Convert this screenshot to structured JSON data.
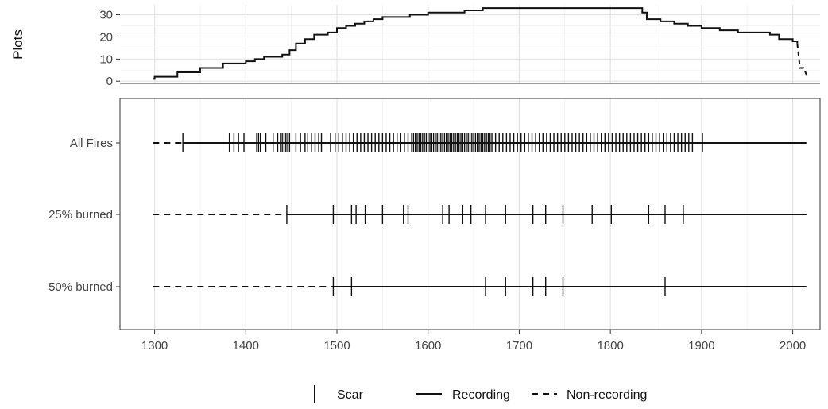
{
  "chart_data": [
    {
      "type": "line",
      "ylabel": "Plots",
      "xlim": [
        1262,
        2030
      ],
      "ylim": [
        -1,
        34.5
      ],
      "y_ticks": [
        0,
        10,
        20,
        30
      ],
      "grid": true,
      "series": [
        {
          "style": "recording",
          "x": [
            1298,
            1300,
            1325,
            1350,
            1375,
            1400,
            1410,
            1420,
            1440,
            1448,
            1455,
            1465,
            1475,
            1490,
            1500,
            1510,
            1520,
            1530,
            1540,
            1550,
            1560,
            1580,
            1600,
            1640,
            1660,
            1680,
            1800,
            1835,
            1840,
            1855,
            1870,
            1885,
            1900,
            1920,
            1940,
            1960,
            1975,
            1985,
            2000,
            2005
          ],
          "y": [
            1,
            2,
            4,
            6,
            8,
            9,
            10,
            11,
            12,
            14,
            17,
            19,
            21,
            22,
            24,
            25,
            26,
            27,
            28,
            29,
            29,
            30,
            31,
            32,
            33,
            33,
            33,
            31,
            28,
            27,
            26,
            25,
            24,
            23,
            22,
            22,
            21,
            19,
            18,
            17
          ]
        },
        {
          "style": "non-recording",
          "x": [
            2005,
            2008,
            2012,
            2016
          ],
          "y": [
            17,
            6,
            6,
            2
          ]
        }
      ]
    },
    {
      "type": "event",
      "xlim": [
        1262,
        2030
      ],
      "x_ticks": [
        1300,
        1400,
        1500,
        1600,
        1700,
        1800,
        1900,
        2000
      ],
      "rows": [
        {
          "label": "All Fires",
          "nonrecording": [
            1298,
            1331
          ],
          "recording": [
            1331,
            2015
          ],
          "scars": [
            1331,
            1382,
            1387,
            1392,
            1398,
            1412,
            1414,
            1416,
            1422,
            1430,
            1435,
            1438,
            1440,
            1442,
            1444,
            1446,
            1448,
            1455,
            1460,
            1465,
            1468,
            1472,
            1476,
            1480,
            1483,
            1493,
            1498,
            1502,
            1506,
            1510,
            1514,
            1518,
            1522,
            1526,
            1530,
            1534,
            1538,
            1542,
            1546,
            1550,
            1554,
            1558,
            1562,
            1566,
            1570,
            1574,
            1578,
            1582,
            1584,
            1586,
            1588,
            1590,
            1592,
            1594,
            1596,
            1598,
            1600,
            1602,
            1604,
            1606,
            1608,
            1610,
            1612,
            1614,
            1616,
            1618,
            1620,
            1622,
            1624,
            1626,
            1628,
            1630,
            1632,
            1634,
            1636,
            1638,
            1640,
            1642,
            1644,
            1646,
            1648,
            1650,
            1652,
            1654,
            1656,
            1658,
            1660,
            1662,
            1664,
            1666,
            1668,
            1670,
            1674,
            1678,
            1682,
            1686,
            1690,
            1694,
            1698,
            1702,
            1706,
            1710,
            1714,
            1718,
            1722,
            1726,
            1730,
            1734,
            1738,
            1742,
            1746,
            1750,
            1754,
            1758,
            1762,
            1766,
            1770,
            1774,
            1778,
            1782,
            1786,
            1790,
            1794,
            1798,
            1802,
            1806,
            1810,
            1814,
            1818,
            1822,
            1826,
            1830,
            1834,
            1838,
            1842,
            1846,
            1850,
            1854,
            1858,
            1862,
            1866,
            1870,
            1874,
            1878,
            1882,
            1886,
            1890,
            1901
          ]
        },
        {
          "label": "25% burned",
          "nonrecording": [
            1298,
            1445
          ],
          "recording": [
            1445,
            2015
          ],
          "scars": [
            1445,
            1496,
            1516,
            1521,
            1531,
            1550,
            1573,
            1578,
            1616,
            1623,
            1638,
            1647,
            1663,
            1685,
            1715,
            1729,
            1748,
            1780,
            1801,
            1842,
            1860,
            1880
          ]
        },
        {
          "label": "50% burned",
          "nonrecording": [
            1298,
            1496
          ],
          "recording": [
            1496,
            2015
          ],
          "scars": [
            1496,
            1516,
            1663,
            1685,
            1715,
            1729,
            1748,
            1860
          ]
        }
      ],
      "legend": {
        "position": "bottom",
        "items": [
          {
            "symbol": "scar",
            "label": "Scar"
          },
          {
            "symbol": "solid",
            "label": "Recording"
          },
          {
            "symbol": "dashed",
            "label": "Non-recording"
          }
        ]
      }
    }
  ]
}
